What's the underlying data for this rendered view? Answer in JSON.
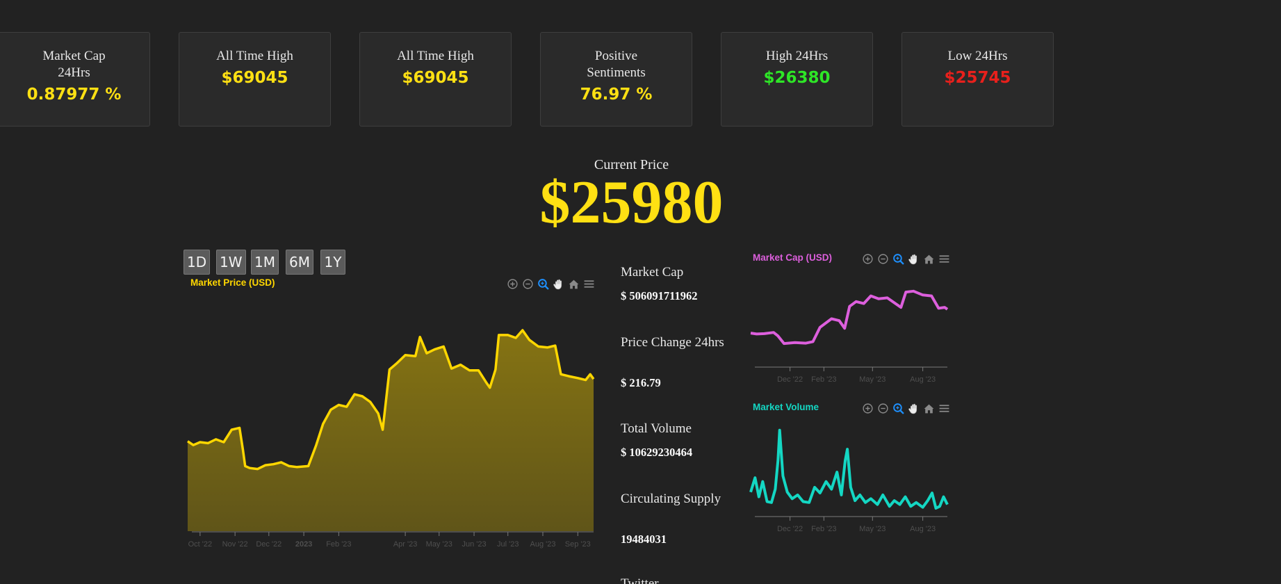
{
  "stats": [
    {
      "label": "Market Cap 24Hrs",
      "value": "0.87977 %",
      "color": "#ffe013"
    },
    {
      "label": "All Time High",
      "value": "$69045",
      "color": "#ffe013"
    },
    {
      "label": "All Time High",
      "value": "$69045",
      "color": "#ffe013"
    },
    {
      "label": "Positive Sentiments",
      "value": "76.97 %",
      "color": "#ffe013"
    },
    {
      "label": "High 24Hrs",
      "value": "$26380",
      "color": "#2ee627"
    },
    {
      "label": "Low 24Hrs",
      "value": "$25745",
      "color": "#e8201c"
    }
  ],
  "current_price": {
    "label": "Current Price",
    "value": "$25980"
  },
  "range_buttons": [
    "1D",
    "1W",
    "1M",
    "6M",
    "1Y"
  ],
  "toolbar_icons": [
    "zoom-in-icon",
    "zoom-out-icon",
    "selection-zoom-icon",
    "pan-hand-icon",
    "home-reset-icon",
    "menu-icon"
  ],
  "info": [
    {
      "label": "Market Cap",
      "value": "$ 506091711962"
    },
    {
      "label": "Price Change 24hrs",
      "value": "$ 216.79"
    },
    {
      "label": "Total Volume",
      "value": "$ 10629230464"
    },
    {
      "label": "Circulating Supply",
      "value": "19484031"
    },
    {
      "label": "Twitter",
      "value": ""
    }
  ],
  "colors": {
    "background": "#222222",
    "price_line": "#ffd700",
    "market_cap_line": "#dd5fdd",
    "volume_line": "#14d7c3",
    "axis_label": "#4f4f4f"
  },
  "chart_data": [
    {
      "type": "area",
      "title": "Market Price (USD)",
      "xlabel": "",
      "ylabel": "",
      "x_tick_labels": [
        "Oct '22",
        "Nov '22",
        "Dec '22",
        "2023",
        "Feb '23",
        "Apr '23",
        "May '23",
        "Jun '23",
        "Jul '23",
        "Aug '23",
        "Sep '23"
      ],
      "x": [
        "2022-09-20",
        "2022-09-25",
        "2022-10-01",
        "2022-10-08",
        "2022-10-15",
        "2022-10-22",
        "2022-10-29",
        "2022-11-05",
        "2022-11-08",
        "2022-11-10",
        "2022-11-14",
        "2022-11-21",
        "2022-11-28",
        "2022-12-05",
        "2022-12-12",
        "2022-12-19",
        "2022-12-26",
        "2023-01-05",
        "2023-01-12",
        "2023-01-18",
        "2023-01-25",
        "2023-02-01",
        "2023-02-08",
        "2023-02-15",
        "2023-02-22",
        "2023-03-01",
        "2023-03-08",
        "2023-03-12",
        "2023-03-18",
        "2023-03-25",
        "2023-04-01",
        "2023-04-10",
        "2023-04-14",
        "2023-04-20",
        "2023-04-27",
        "2023-05-05",
        "2023-05-12",
        "2023-05-20",
        "2023-05-28",
        "2023-06-05",
        "2023-06-12",
        "2023-06-15",
        "2023-06-20",
        "2023-06-23",
        "2023-07-01",
        "2023-07-08",
        "2023-07-14",
        "2023-07-20",
        "2023-07-28",
        "2023-08-05",
        "2023-08-12",
        "2023-08-17",
        "2023-08-24",
        "2023-09-01",
        "2023-09-08",
        "2023-09-12",
        "2023-09-15"
      ],
      "y": [
        19400,
        19000,
        19300,
        19200,
        19600,
        19300,
        20600,
        20800,
        18500,
        16800,
        16600,
        16500,
        16900,
        17000,
        17200,
        16800,
        16700,
        16800,
        19000,
        21200,
        22700,
        23200,
        23000,
        24300,
        24100,
        23500,
        22300,
        20600,
        26900,
        27600,
        28400,
        28300,
        30300,
        28600,
        29000,
        29300,
        27000,
        27400,
        26800,
        26800,
        25500,
        25000,
        26900,
        30500,
        30500,
        30200,
        31000,
        30000,
        29300,
        29200,
        29400,
        26400,
        26200,
        26000,
        25800,
        26400,
        25900
      ],
      "ylim": [
        10000,
        35000
      ]
    },
    {
      "type": "line",
      "title": "Market Cap (USD)",
      "xlabel": "",
      "ylabel": "",
      "x_tick_labels": [
        "Dec '22",
        "Feb '23",
        "May '23",
        "Aug '23"
      ],
      "x": [
        "2022-09-20",
        "2022-10-01",
        "2022-10-15",
        "2022-11-01",
        "2022-11-09",
        "2022-11-20",
        "2022-12-10",
        "2022-12-30",
        "2023-01-12",
        "2023-01-25",
        "2023-02-15",
        "2023-03-01",
        "2023-03-11",
        "2023-03-20",
        "2023-04-01",
        "2023-04-15",
        "2023-04-28",
        "2023-05-12",
        "2023-05-28",
        "2023-06-12",
        "2023-06-22",
        "2023-07-01",
        "2023-07-15",
        "2023-08-01",
        "2023-08-17",
        "2023-08-30",
        "2023-09-10",
        "2023-09-15"
      ],
      "y": [
        375,
        370,
        372,
        378,
        360,
        320,
        325,
        322,
        330,
        405,
        450,
        440,
        400,
        515,
        540,
        530,
        570,
        555,
        560,
        530,
        510,
        590,
        595,
        575,
        570,
        505,
        510,
        500
      ],
      "ylim": [
        200,
        700
      ]
    },
    {
      "type": "line",
      "title": "Market Volume",
      "xlabel": "",
      "ylabel": "",
      "x_tick_labels": [
        "Dec '22",
        "Feb '23",
        "May '23",
        "Aug '23"
      ],
      "x": [
        "2022-09-20",
        "2022-09-28",
        "2022-10-05",
        "2022-10-12",
        "2022-10-20",
        "2022-10-28",
        "2022-11-04",
        "2022-11-09",
        "2022-11-12",
        "2022-11-18",
        "2022-11-26",
        "2022-12-05",
        "2022-12-15",
        "2022-12-25",
        "2023-01-05",
        "2023-01-15",
        "2023-01-25",
        "2023-02-05",
        "2023-02-15",
        "2023-02-25",
        "2023-03-05",
        "2023-03-12",
        "2023-03-16",
        "2023-03-22",
        "2023-03-30",
        "2023-04-08",
        "2023-04-18",
        "2023-04-28",
        "2023-05-10",
        "2023-05-20",
        "2023-06-01",
        "2023-06-10",
        "2023-06-20",
        "2023-06-30",
        "2023-07-10",
        "2023-07-20",
        "2023-08-01",
        "2023-08-10",
        "2023-08-18",
        "2023-08-25",
        "2023-09-01",
        "2023-09-08",
        "2023-09-15"
      ],
      "y": [
        25,
        40,
        20,
        36,
        15,
        14,
        28,
        58,
        90,
        42,
        25,
        18,
        22,
        15,
        14,
        30,
        24,
        36,
        28,
        46,
        22,
        58,
        70,
        30,
        16,
        22,
        14,
        18,
        12,
        22,
        10,
        16,
        12,
        20,
        10,
        14,
        9,
        16,
        24,
        8,
        10,
        20,
        12
      ],
      "ylim": [
        0,
        100
      ]
    }
  ]
}
